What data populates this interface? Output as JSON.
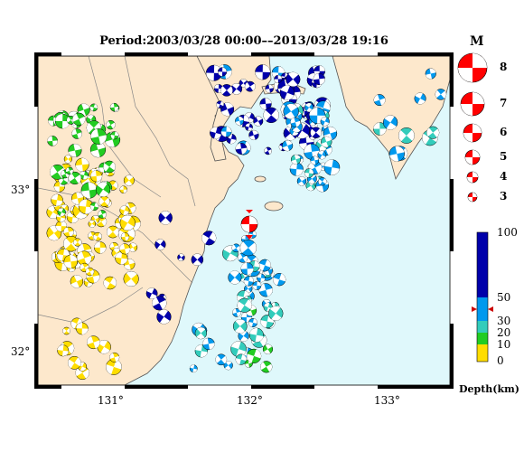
{
  "title": "Period:2003/03/28 00:00––2013/03/28 19:16",
  "map": {
    "lon_range": [
      130.5,
      133.5
    ],
    "lat_range": [
      31.8,
      33.85
    ],
    "x_ticks": [
      "131°",
      "132°",
      "133°"
    ],
    "y_ticks": [
      "33°",
      "32°"
    ],
    "colors": {
      "sea": "#dff8fb",
      "land": "#fde8cc",
      "coast": "#555555",
      "event": "#ff0000"
    }
  },
  "magnitude_legend": {
    "title": "M",
    "items": [
      "8",
      "7",
      "6",
      "5",
      "4",
      "3"
    ]
  },
  "depth_legend": {
    "title": "Depth(km)",
    "labels": [
      "100",
      "50",
      "30",
      "20",
      "10",
      "0"
    ],
    "current_depth": 45,
    "colors": [
      "#ffdd00",
      "#22cc22",
      "#33ccbb",
      "#0099ee",
      "#0000aa"
    ]
  }
}
